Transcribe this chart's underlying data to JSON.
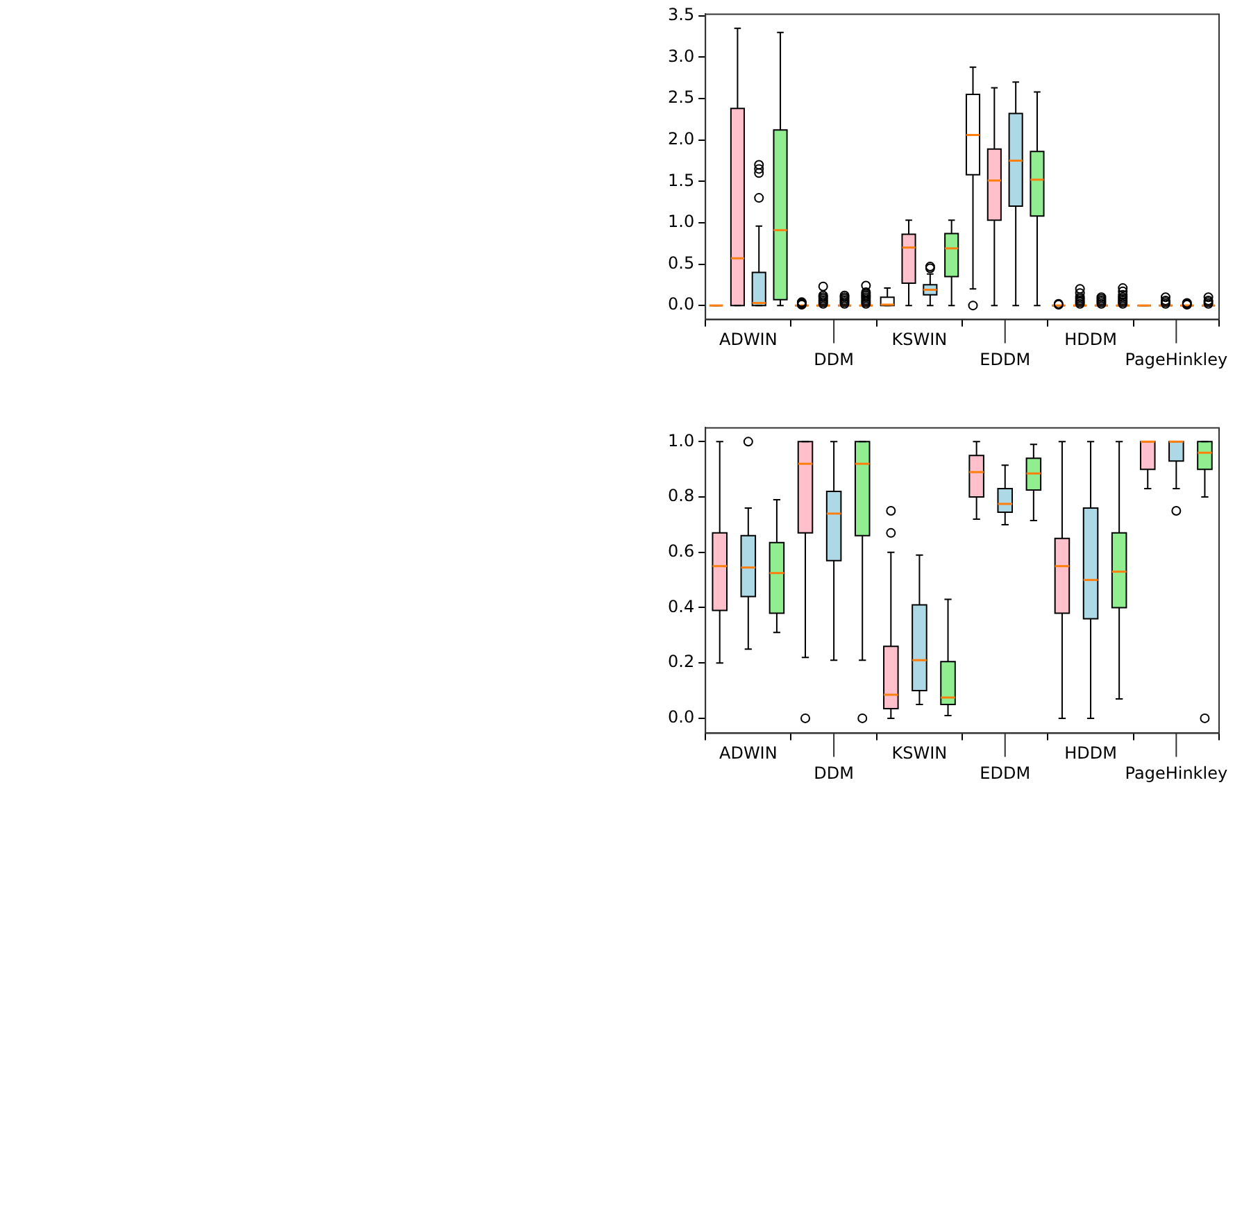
{
  "chart_data": [
    {
      "type": "box",
      "categories": [
        "ADWIN",
        "DDM",
        "KSWIN",
        "EDDM",
        "HDDM",
        "PageHinkley"
      ],
      "ylim": [
        -0.17,
        3.52
      ],
      "yticks": [
        {
          "value": 0,
          "label": "0.0"
        },
        {
          "value": 0.5,
          "label": "0.5"
        },
        {
          "value": 1,
          "label": "1.0"
        },
        {
          "value": 1.5,
          "label": "1.5"
        },
        {
          "value": 2,
          "label": "2.0"
        },
        {
          "value": 2.5,
          "label": "2.5"
        },
        {
          "value": 3,
          "label": "3.0"
        },
        {
          "value": 3.5,
          "label": "3.5"
        }
      ],
      "grid": false,
      "legend": false,
      "series": [
        {
          "color": "#ffffff",
          "boxes": [
            {
              "low": 0,
              "q1": 0,
              "median": 0,
              "q3": 0,
              "high": 0
            },
            {
              "low": 0,
              "q1": 0,
              "median": 0,
              "q3": 0,
              "high": 0,
              "outliers": [
                0.01,
                0.02,
                0.03,
                0.04
              ]
            },
            {
              "low": 0,
              "q1": 0,
              "median": 0.01,
              "q3": 0.1,
              "high": 0.21
            },
            {
              "low": 0.2,
              "q1": 1.58,
              "median": 2.06,
              "q3": 2.55,
              "high": 2.88,
              "outliers": [
                0
              ]
            },
            {
              "low": 0,
              "q1": 0,
              "median": 0,
              "q3": 0,
              "high": 0,
              "outliers": [
                0.01,
                0.02
              ]
            },
            {
              "low": 0,
              "q1": 0,
              "median": 0,
              "q3": 0,
              "high": 0
            }
          ]
        },
        {
          "color": "#ffc0cb",
          "boxes": [
            {
              "low": 0,
              "q1": 0,
              "median": 0.57,
              "q3": 2.38,
              "high": 3.35
            },
            {
              "low": 0,
              "q1": 0,
              "median": 0,
              "q3": 0,
              "high": 0,
              "outliers": [
                0.02,
                0.04,
                0.06,
                0.08,
                0.1,
                0.12,
                0.23
              ]
            },
            {
              "low": 0,
              "q1": 0.27,
              "median": 0.7,
              "q3": 0.86,
              "high": 1.03
            },
            {
              "low": 0,
              "q1": 1.03,
              "median": 1.51,
              "q3": 1.89,
              "high": 2.63
            },
            {
              "low": 0,
              "q1": 0,
              "median": 0,
              "q3": 0,
              "high": 0,
              "outliers": [
                0.02,
                0.04,
                0.06,
                0.08,
                0.1,
                0.15,
                0.2
              ]
            },
            {
              "low": 0,
              "q1": 0,
              "median": 0,
              "q3": 0,
              "high": 0,
              "outliers": [
                0.02,
                0.04,
                0.06,
                0.1
              ]
            }
          ]
        },
        {
          "color": "#add8e6",
          "boxes": [
            {
              "low": 0,
              "q1": 0,
              "median": 0.03,
              "q3": 0.4,
              "high": 0.96,
              "outliers": [
                1.3,
                1.6,
                1.65,
                1.7
              ]
            },
            {
              "low": 0,
              "q1": 0,
              "median": 0,
              "q3": 0,
              "high": 0,
              "outliers": [
                0.02,
                0.04,
                0.06,
                0.08,
                0.1,
                0.12
              ]
            },
            {
              "low": 0,
              "q1": 0.13,
              "median": 0.19,
              "q3": 0.25,
              "high": 0.38,
              "outliers": [
                0.45,
                0.47
              ]
            },
            {
              "low": 0,
              "q1": 1.2,
              "median": 1.75,
              "q3": 2.32,
              "high": 2.7
            },
            {
              "low": 0,
              "q1": 0,
              "median": 0,
              "q3": 0,
              "high": 0,
              "outliers": [
                0.02,
                0.04,
                0.06,
                0.08,
                0.1
              ]
            },
            {
              "low": 0,
              "q1": 0,
              "median": 0,
              "q3": 0,
              "high": 0,
              "outliers": [
                0.01,
                0.02,
                0.03
              ]
            }
          ]
        },
        {
          "color": "#90ee90",
          "boxes": [
            {
              "low": 0,
              "q1": 0.07,
              "median": 0.91,
              "q3": 2.12,
              "high": 3.3
            },
            {
              "low": 0,
              "q1": 0,
              "median": 0,
              "q3": 0,
              "high": 0,
              "outliers": [
                0.02,
                0.04,
                0.06,
                0.08,
                0.1,
                0.12,
                0.14,
                0.16,
                0.24
              ]
            },
            {
              "low": 0,
              "q1": 0.35,
              "median": 0.69,
              "q3": 0.87,
              "high": 1.03
            },
            {
              "low": 0,
              "q1": 1.08,
              "median": 1.52,
              "q3": 1.86,
              "high": 2.58
            },
            {
              "low": 0,
              "q1": 0,
              "median": 0,
              "q3": 0,
              "high": 0,
              "outliers": [
                0.02,
                0.04,
                0.06,
                0.08,
                0.1,
                0.13,
                0.17,
                0.21
              ]
            },
            {
              "low": 0,
              "q1": 0,
              "median": 0,
              "q3": 0,
              "high": 0,
              "outliers": [
                0.02,
                0.04,
                0.06,
                0.1
              ]
            }
          ]
        }
      ]
    },
    {
      "type": "box",
      "categories": [
        "ADWIN",
        "DDM",
        "KSWIN",
        "EDDM",
        "HDDM",
        "PageHinkley"
      ],
      "ylim": [
        -0.054,
        1.05
      ],
      "yticks": [
        {
          "value": 0,
          "label": "0.0"
        },
        {
          "value": 0.2,
          "label": "0.2"
        },
        {
          "value": 0.4,
          "label": "0.4"
        },
        {
          "value": 0.6,
          "label": "0.6"
        },
        {
          "value": 0.8,
          "label": "0.8"
        },
        {
          "value": 1,
          "label": "1.0"
        }
      ],
      "grid": false,
      "legend": false,
      "series": [
        {
          "color": "#ffc0cb",
          "boxes": [
            {
              "low": 0.2,
              "q1": 0.39,
              "median": 0.55,
              "q3": 0.67,
              "high": 1.0
            },
            {
              "low": 0.22,
              "q1": 0.67,
              "median": 0.92,
              "q3": 1.0,
              "high": 1.0,
              "outliers": [
                0
              ]
            },
            {
              "low": 0,
              "q1": 0.035,
              "median": 0.085,
              "q3": 0.26,
              "high": 0.6,
              "outliers": [
                0.67,
                0.75
              ]
            },
            {
              "low": 0.72,
              "q1": 0.8,
              "median": 0.89,
              "q3": 0.95,
              "high": 1.0
            },
            {
              "low": 0,
              "q1": 0.38,
              "median": 0.55,
              "q3": 0.65,
              "high": 1.0
            },
            {
              "low": 0.83,
              "q1": 0.9,
              "median": 1.0,
              "q3": 1.0,
              "high": 1.0
            }
          ]
        },
        {
          "color": "#add8e6",
          "boxes": [
            {
              "low": 0.25,
              "q1": 0.44,
              "median": 0.545,
              "q3": 0.66,
              "high": 0.76,
              "outliers": [
                1.0
              ]
            },
            {
              "low": 0.21,
              "q1": 0.57,
              "median": 0.74,
              "q3": 0.82,
              "high": 1.0
            },
            {
              "low": 0.05,
              "q1": 0.1,
              "median": 0.21,
              "q3": 0.41,
              "high": 0.59
            },
            {
              "low": 0.7,
              "q1": 0.745,
              "median": 0.775,
              "q3": 0.83,
              "high": 0.915
            },
            {
              "low": 0,
              "q1": 0.36,
              "median": 0.5,
              "q3": 0.76,
              "high": 1.0
            },
            {
              "low": 0.83,
              "q1": 0.93,
              "median": 1.0,
              "q3": 1.0,
              "high": 1.0,
              "outliers": [
                0.75
              ]
            }
          ]
        },
        {
          "color": "#90ee90",
          "boxes": [
            {
              "low": 0.31,
              "q1": 0.38,
              "median": 0.525,
              "q3": 0.635,
              "high": 0.79
            },
            {
              "low": 0.21,
              "q1": 0.66,
              "median": 0.92,
              "q3": 1.0,
              "high": 1.0,
              "outliers": [
                0
              ]
            },
            {
              "low": 0.01,
              "q1": 0.05,
              "median": 0.075,
              "q3": 0.205,
              "high": 0.43
            },
            {
              "low": 0.715,
              "q1": 0.825,
              "median": 0.885,
              "q3": 0.94,
              "high": 0.99
            },
            {
              "low": 0.07,
              "q1": 0.4,
              "median": 0.53,
              "q3": 0.67,
              "high": 1.0
            },
            {
              "low": 0.8,
              "q1": 0.9,
              "median": 0.96,
              "q3": 1.0,
              "high": 1.0,
              "outliers": [
                0
              ]
            }
          ]
        }
      ]
    }
  ]
}
